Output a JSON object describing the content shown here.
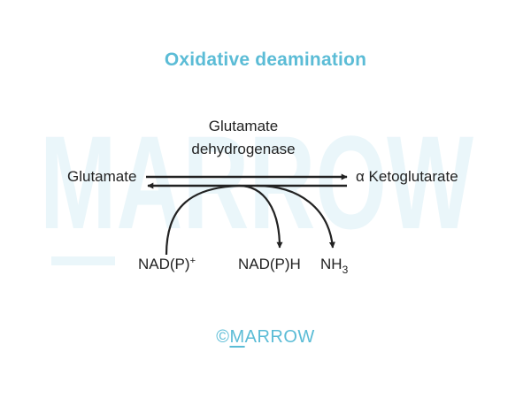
{
  "title": "Oxidative deamination",
  "enzyme": {
    "line1": "Glutamate",
    "line2": "dehydrogenase"
  },
  "substrate": "Glutamate",
  "product": "α Ketoglutarate",
  "cofactors": {
    "input": {
      "base": "NAD(P)",
      "superscript": "+"
    },
    "output1": "NAD(P)H",
    "output2": {
      "base": "NH",
      "subscript": "3"
    }
  },
  "watermark": "MARROW",
  "brand": {
    "copyright": "©",
    "first_letter": "M",
    "rest": "ARROW"
  },
  "colors": {
    "accent": "#5bbcd6",
    "watermark": "#eaf6fa",
    "text": "#222222",
    "arrow": "#222222"
  }
}
